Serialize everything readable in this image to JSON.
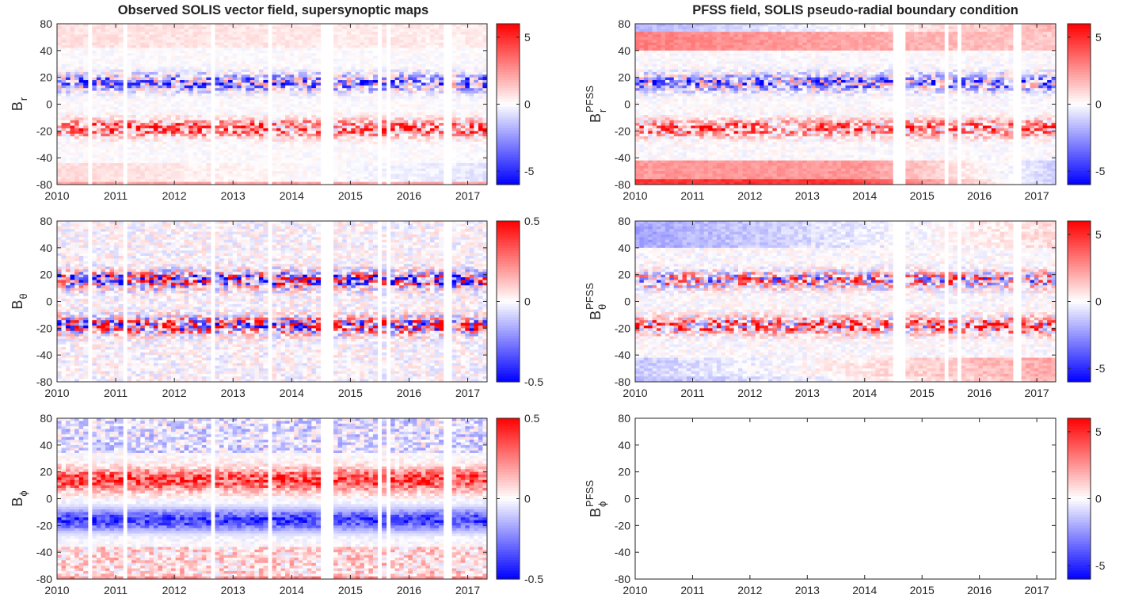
{
  "titles": {
    "left": "Observed SOLIS vector field, supersynoptic maps",
    "right": "PFSS field, SOLIS pseudo-radial boundary condition"
  },
  "colors": {
    "negative": "#0000ff",
    "zero": "#ffffff",
    "positive": "#ff0000",
    "axis": "#262626"
  },
  "chart_data": [
    {
      "type": "heatmap",
      "id": "obs-br",
      "ylabel": {
        "base": "B",
        "sub": "r",
        "sup": ""
      },
      "xlim": [
        2010.0,
        2017.33
      ],
      "ylim": [
        -80,
        80
      ],
      "xticks": [
        "2010",
        "2011",
        "2012",
        "2013",
        "2014",
        "2015",
        "2016",
        "2017"
      ],
      "yticks": [
        80,
        40,
        20,
        0,
        -20,
        -40,
        -80
      ],
      "colorbar": {
        "min": -6,
        "max": 6,
        "ticks": [
          5,
          0,
          -5
        ]
      },
      "data_gaps_years": [
        [
          2010.56,
          2010.63
        ],
        [
          2011.1,
          2011.17
        ],
        [
          2012.64,
          2012.7
        ],
        [
          2013.58,
          2013.64
        ],
        [
          2014.5,
          2014.72
        ],
        [
          2015.43,
          2015.52
        ],
        [
          2015.6,
          2015.66
        ],
        [
          2016.6,
          2016.72
        ]
      ],
      "features": {
        "active_band_lat": 18,
        "polar_cap_sign": "north-negative-weak, south-positive",
        "has_data": true
      }
    },
    {
      "type": "heatmap",
      "id": "pfss-br",
      "ylabel": {
        "base": "B",
        "sub": "r",
        "sup": "PFSS"
      },
      "xlim": [
        2010.0,
        2017.33
      ],
      "ylim": [
        -80,
        80
      ],
      "xticks": [
        "2010",
        "2011",
        "2012",
        "2013",
        "2014",
        "2015",
        "2016",
        "2017"
      ],
      "yticks": [
        80,
        40,
        20,
        0,
        -20,
        -40,
        -80
      ],
      "colorbar": {
        "min": -6,
        "max": 6,
        "ticks": [
          5,
          0,
          -5
        ]
      },
      "data_gaps_years": [
        [
          2014.5,
          2014.72
        ],
        [
          2015.37,
          2015.43
        ],
        [
          2015.6,
          2015.66
        ],
        [
          2016.6,
          2016.72
        ]
      ],
      "features": {
        "active_band_lat": 18,
        "polar_cap_sign": "north-negative, south-positive reversing",
        "has_data": true
      }
    },
    {
      "type": "heatmap",
      "id": "obs-btheta",
      "ylabel": {
        "base": "B",
        "sub": "θ",
        "sup": ""
      },
      "xlim": [
        2010.0,
        2017.33
      ],
      "ylim": [
        -80,
        80
      ],
      "xticks": [
        "2010",
        "2011",
        "2012",
        "2013",
        "2014",
        "2015",
        "2016",
        "2017"
      ],
      "yticks": [
        80,
        40,
        20,
        0,
        -20,
        -40,
        -80
      ],
      "colorbar": {
        "min": -0.5,
        "max": 0.5,
        "ticks": [
          0.5,
          0,
          -0.5
        ]
      },
      "data_gaps_years": [
        [
          2010.56,
          2010.63
        ],
        [
          2011.1,
          2011.17
        ],
        [
          2012.64,
          2012.7
        ],
        [
          2013.58,
          2013.64
        ],
        [
          2014.5,
          2014.72
        ],
        [
          2015.43,
          2015.52
        ],
        [
          2015.6,
          2015.66
        ],
        [
          2016.6,
          2016.72
        ]
      ],
      "features": {
        "active_band_lat": 18,
        "polar_cap_sign": "mixed",
        "has_data": true
      }
    },
    {
      "type": "heatmap",
      "id": "pfss-btheta",
      "ylabel": {
        "base": "B",
        "sub": "θ",
        "sup": "PFSS"
      },
      "xlim": [
        2010.0,
        2017.33
      ],
      "ylim": [
        -80,
        80
      ],
      "xticks": [
        "2010",
        "2011",
        "2012",
        "2013",
        "2014",
        "2015",
        "2016",
        "2017"
      ],
      "yticks": [
        80,
        40,
        20,
        0,
        -20,
        -40,
        -80
      ],
      "colorbar": {
        "min": -6,
        "max": 6,
        "ticks": [
          5,
          0,
          -5
        ]
      },
      "data_gaps_years": [
        [
          2014.5,
          2014.72
        ],
        [
          2015.37,
          2015.43
        ],
        [
          2015.6,
          2015.66
        ],
        [
          2016.6,
          2016.72
        ]
      ],
      "features": {
        "active_band_lat": 18,
        "polar_cap_sign": "north-negative, south-positive",
        "has_data": true
      }
    },
    {
      "type": "heatmap",
      "id": "obs-bphi",
      "ylabel": {
        "base": "B",
        "sub": "ϕ",
        "sup": ""
      },
      "xlim": [
        2010.0,
        2017.33
      ],
      "ylim": [
        -80,
        80
      ],
      "xticks": [
        "2010",
        "2011",
        "2012",
        "2013",
        "2014",
        "2015",
        "2016",
        "2017"
      ],
      "yticks": [
        80,
        40,
        20,
        0,
        -20,
        -40,
        -80
      ],
      "colorbar": {
        "min": -0.5,
        "max": 0.5,
        "ticks": [
          0.5,
          0,
          -0.5
        ]
      },
      "data_gaps_years": [
        [
          2010.56,
          2010.63
        ],
        [
          2011.1,
          2011.17
        ],
        [
          2012.64,
          2012.7
        ],
        [
          2013.58,
          2013.64
        ],
        [
          2014.5,
          2014.72
        ],
        [
          2015.43,
          2015.52
        ],
        [
          2015.6,
          2015.66
        ],
        [
          2016.6,
          2016.72
        ]
      ],
      "features": {
        "active_band_lat": 18,
        "polar_cap_sign": "north-positive band, south-negative band",
        "has_data": true
      }
    },
    {
      "type": "heatmap",
      "id": "pfss-bphi",
      "ylabel": {
        "base": "B",
        "sub": "ϕ",
        "sup": "PFSS"
      },
      "xlim": [
        2010.0,
        2017.33
      ],
      "ylim": [
        -80,
        80
      ],
      "xticks": [
        "2010",
        "2011",
        "2012",
        "2013",
        "2014",
        "2015",
        "2016",
        "2017"
      ],
      "yticks": [
        80,
        40,
        20,
        0,
        -20,
        -40,
        -80
      ],
      "colorbar": {
        "min": -6,
        "max": 6,
        "ticks": [
          5,
          0,
          -5
        ]
      },
      "data_gaps_years": [],
      "features": {
        "active_band_lat": 18,
        "polar_cap_sign": "none",
        "has_data": false
      }
    }
  ]
}
